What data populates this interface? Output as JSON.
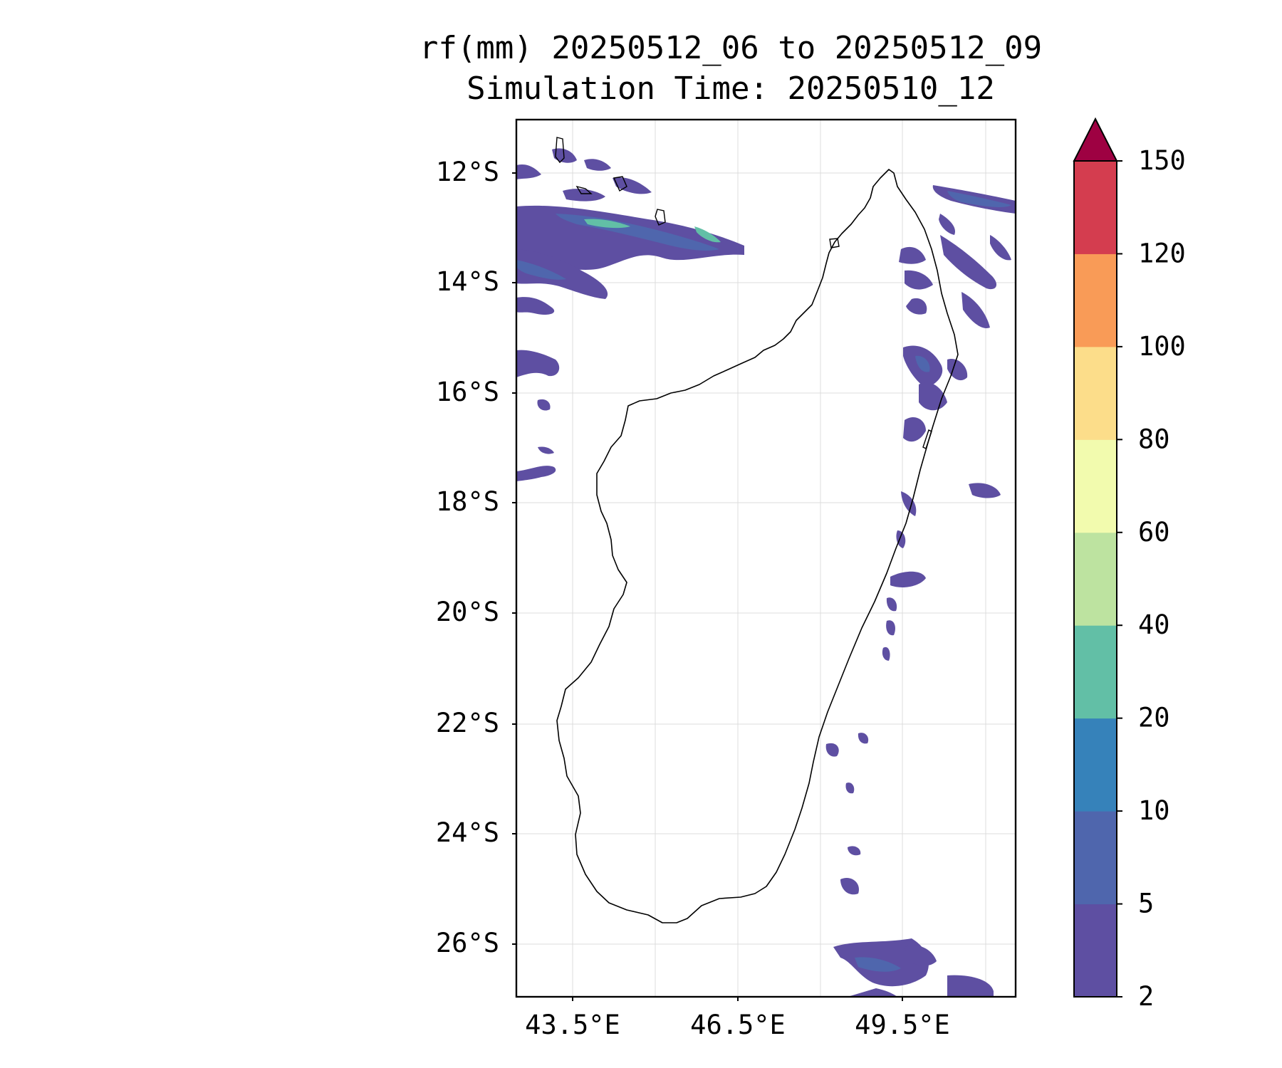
{
  "title": {
    "line1": "rf(mm) 20250512_06 to 20250512_09",
    "line2": "Simulation Time: 20250510_12"
  },
  "map": {
    "lat_ticks": [
      "12°S",
      "14°S",
      "16°S",
      "18°S",
      "20°S",
      "22°S",
      "24°S",
      "26°S"
    ],
    "lon_ticks": [
      "43.5°E",
      "46.5°E",
      "49.5°E"
    ],
    "grid": true
  },
  "colorbar": {
    "levels": [
      "2",
      "5",
      "10",
      "20",
      "40",
      "60",
      "80",
      "100",
      "120",
      "150"
    ],
    "colors": [
      "#5e4fa2",
      "#4f66ad",
      "#3682ba",
      "#62bfa6",
      "#bde3a0",
      "#f2fbae",
      "#fcdd8a",
      "#f99b57",
      "#d43d4f",
      "#9e0142"
    ],
    "extend": "max"
  }
}
